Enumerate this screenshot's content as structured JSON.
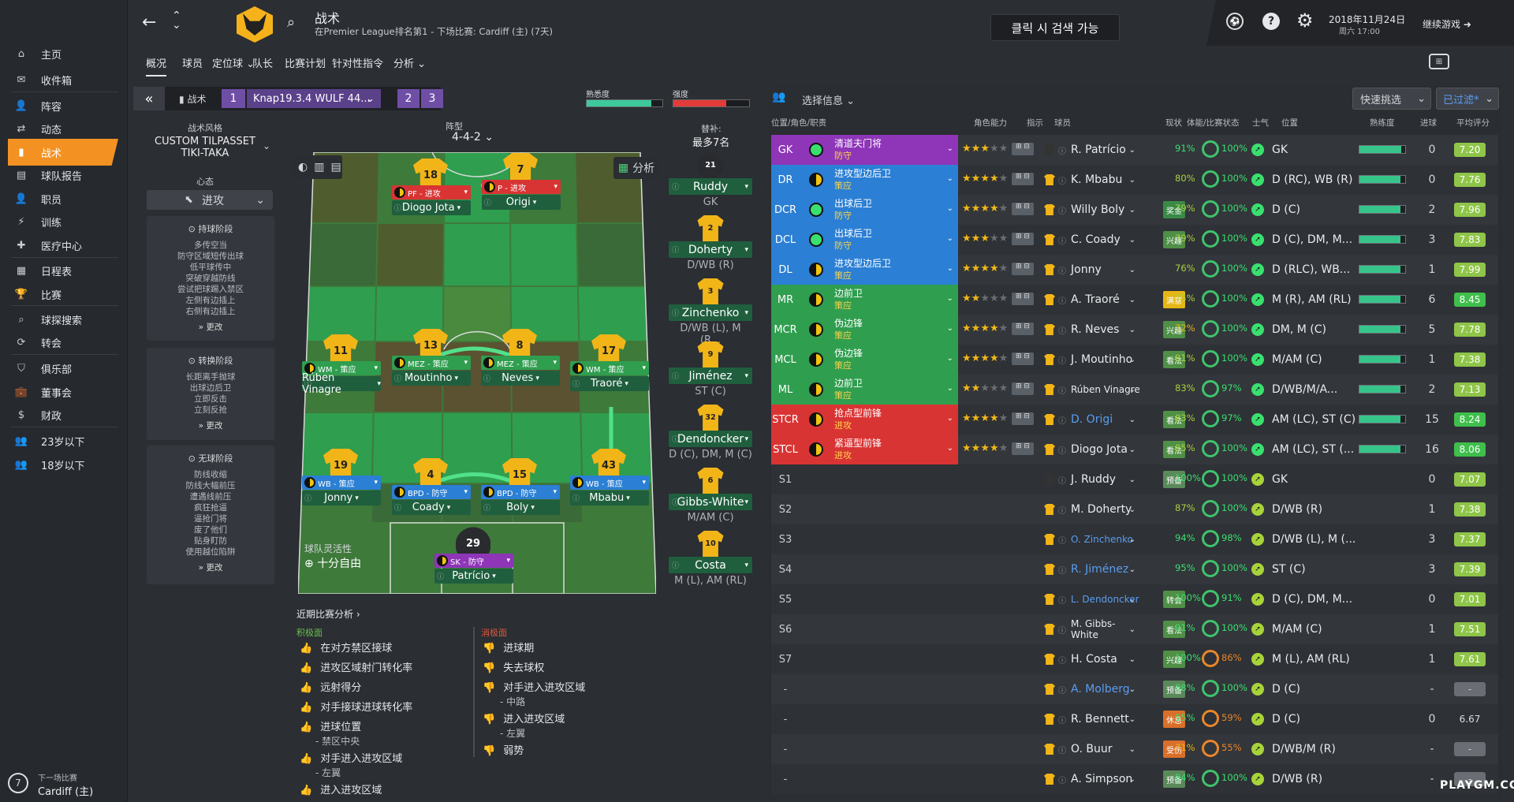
{
  "sidebar": {
    "items": [
      {
        "label": "主页",
        "icon": "home-icon"
      },
      {
        "label": "收件箱",
        "icon": "inbox-icon"
      },
      {
        "label": "阵容",
        "icon": "squad-icon"
      },
      {
        "label": "动态",
        "icon": "dynamics-icon"
      },
      {
        "label": "战术",
        "icon": "tactics-icon"
      },
      {
        "label": "球队报告",
        "icon": "report-icon"
      },
      {
        "label": "职员",
        "icon": "staff-icon"
      },
      {
        "label": "训练",
        "icon": "training-icon"
      },
      {
        "label": "医疗中心",
        "icon": "medical-icon"
      },
      {
        "label": "日程表",
        "icon": "calendar-icon"
      },
      {
        "label": "比赛",
        "icon": "trophy-icon"
      },
      {
        "label": "球探搜索",
        "icon": "search-icon"
      },
      {
        "label": "转会",
        "icon": "transfer-icon"
      },
      {
        "label": "俱乐部",
        "icon": "shield-icon"
      },
      {
        "label": "董事会",
        "icon": "board-icon"
      },
      {
        "label": "财政",
        "icon": "finance-icon"
      },
      {
        "label": "23岁以下",
        "icon": "u23-icon"
      },
      {
        "label": "18岁以下",
        "icon": "u18-icon"
      }
    ],
    "next_match_label": "下一场比赛",
    "next_match_value": "Cardiff (主)",
    "next_match_days": "7"
  },
  "header": {
    "title": "战术",
    "subtitle": "在Premier League排名第1 - 下场比赛: Cardiff (主) (7天)",
    "tooltip": "클릭 시 검색 가능",
    "date": "2018年11月24日",
    "time": "周六 17:00",
    "continue": "继续游戏"
  },
  "subnav": [
    "概况",
    "球员",
    "定位球",
    "队长",
    "比赛计划",
    "针对性指令",
    "分析"
  ],
  "tacticbar": {
    "label": "战术",
    "slot1": "1",
    "tactic_name": "Knap19.3.4 WULF 44...",
    "slot2": "2",
    "slot3": "3"
  },
  "meters": {
    "familiarity_label": "熟悉度",
    "intensity_label": "强度",
    "familiarity": 0.85,
    "intensity": 0.7
  },
  "style": {
    "label": "战术风格",
    "value1": "CUSTOM TILPASSET",
    "value2": "TIKI-TAKA",
    "mentality_label": "心态",
    "mentality": "进攻"
  },
  "phases": [
    {
      "title": "持球阶段",
      "items": [
        "多传空当",
        "防守区域短传出球",
        "低平球传中",
        "突破穿越防线",
        "尝试把球踢入禁区",
        "左侧有边插上",
        "右侧有边插上"
      ],
      "more": "更改"
    },
    {
      "title": "转换阶段",
      "items": [
        "长距离手抛球",
        "出球边后卫",
        "立即反击",
        "立刻反抢"
      ],
      "more": "更改"
    },
    {
      "title": "无球阶段",
      "items": [
        "防线收缩",
        "防线大幅前压",
        "遭遇线前压",
        "疯狂抢逼",
        "逼抢门将",
        "废了他们",
        "贴身盯防",
        "使用越位陷阱"
      ],
      "more": "更改"
    }
  ],
  "formation": {
    "label": "阵型",
    "value": "4-4-2",
    "analysis": "分析",
    "flex_label": "球队灵活性",
    "flex_value": "十分自由"
  },
  "players_on_pitch": [
    {
      "num": "18",
      "role": "PF - 进攻",
      "name": "Diogo Jota",
      "color": "#d93434"
    },
    {
      "num": "7",
      "role": "P - 进攻",
      "name": "Origi",
      "color": "#d93434"
    },
    {
      "num": "11",
      "role": "WM - 策应",
      "name": "Rúben Vinagre",
      "color": "#2f9e4f"
    },
    {
      "num": "13",
      "role": "MEZ - 策应",
      "name": "Moutinho",
      "color": "#2f9e4f"
    },
    {
      "num": "8",
      "role": "MEZ - 策应",
      "name": "Neves",
      "color": "#2f9e4f"
    },
    {
      "num": "17",
      "role": "WM - 策应",
      "name": "Traoré",
      "color": "#2f9e4f"
    },
    {
      "num": "19",
      "role": "WB - 策应",
      "name": "Jonny",
      "color": "#2b7fd4"
    },
    {
      "num": "4",
      "role": "BPD - 防守",
      "name": "Coady",
      "color": "#2b7fd4"
    },
    {
      "num": "15",
      "role": "BPD - 防守",
      "name": "Boly",
      "color": "#2b7fd4"
    },
    {
      "num": "43",
      "role": "WB - 策应",
      "name": "Mbabu",
      "color": "#2b7fd4"
    },
    {
      "num": "29",
      "role": "SK - 防守",
      "name": "Patrício",
      "color": "#8e35b8"
    }
  ],
  "subs": {
    "label": "替补:",
    "max": "最多7名",
    "list": [
      {
        "num": "21",
        "name": "Ruddy",
        "pos": "GK"
      },
      {
        "num": "2",
        "name": "Doherty",
        "pos": "D/WB (R)"
      },
      {
        "num": "3",
        "name": "Zinchenko",
        "pos": "D/WB (L), M (R..."
      },
      {
        "num": "9",
        "name": "Jiménez",
        "pos": "ST (C)"
      },
      {
        "num": "32",
        "name": "Dendoncker",
        "pos": "D (C), DM, M (C)"
      },
      {
        "num": "6",
        "name": "Gibbs-White",
        "pos": "M/AM (C)"
      },
      {
        "num": "10",
        "name": "Costa",
        "pos": "M (L), AM (RL)"
      }
    ]
  },
  "analysis": {
    "title": "近期比赛分析",
    "pos_label": "积极面",
    "neg_label": "消极面",
    "positives": [
      "在对方禁区接球",
      "进攻区域射门转化率",
      "远射得分",
      "对手接球进球转化率",
      "进球位置",
      "- 禁区中央",
      "对手进入进攻区域",
      "- 左翼",
      "进入进攻区域"
    ],
    "negatives": [
      "进球期",
      "失去球权",
      "对手进入进攻区域",
      "- 中路",
      "进入进攻区域",
      "- 左翼",
      "弱势"
    ]
  },
  "table": {
    "select_info": "选择信息",
    "quick_pick": "快速挑选",
    "filtered": "已过滤*",
    "headers": [
      "位置/角色/职责",
      "角色能力",
      "指示",
      "球员",
      "现状",
      "体能/比赛状态",
      "士气",
      "位置",
      "熟练度",
      "进球",
      "平均评分"
    ],
    "rows": [
      {
        "pos": "GK",
        "role": "清道夫门将",
        "duty": "防守",
        "stars": 3,
        "name": "R. Patrício",
        "badge": "",
        "fit": "91%",
        "match": "100%",
        "position": "GK",
        "fam": 0.92,
        "goals": "0",
        "rating": "7.20",
        "bg": "#8e35b8"
      },
      {
        "pos": "DR",
        "role": "进攻型边后卫",
        "duty": "策应",
        "stars": 3.5,
        "name": "K. Mbabu",
        "badge": "",
        "fit": "80%",
        "match": "100%",
        "position": "D (RC), WB (R)",
        "fam": 0.9,
        "goals": "0",
        "rating": "7.76",
        "bg": "#2b7fd4"
      },
      {
        "pos": "DCR",
        "role": "出球后卫",
        "duty": "防守",
        "stars": 3.5,
        "name": "Willy Boly",
        "badge": "奖金",
        "fit": "79%",
        "match": "100%",
        "position": "D (C)",
        "fam": 0.9,
        "goals": "2",
        "rating": "7.96",
        "bg": "#2b7fd4"
      },
      {
        "pos": "DCL",
        "role": "出球后卫",
        "duty": "防守",
        "stars": 3,
        "name": "C. Coady",
        "badge": "兴趣",
        "fit": "79%",
        "match": "100%",
        "position": "D (C), DM, M...",
        "fam": 0.9,
        "goals": "3",
        "rating": "7.83",
        "bg": "#2b7fd4"
      },
      {
        "pos": "DL",
        "role": "进攻型边后卫",
        "duty": "策应",
        "stars": 3.5,
        "name": "Jonny",
        "badge": "",
        "fit": "76%",
        "match": "100%",
        "position": "D (RLC), WB...",
        "fam": 0.9,
        "goals": "1",
        "rating": "7.99",
        "bg": "#2b7fd4"
      },
      {
        "pos": "MR",
        "role": "边前卫",
        "duty": "策应",
        "stars": 2,
        "name": "A. Traoré",
        "badge": "满意",
        "fit": "75%",
        "match": "100%",
        "position": "M (R), AM (RL)",
        "fam": 0.9,
        "goals": "6",
        "rating": "8.45",
        "bg": "#2f9e4f"
      },
      {
        "pos": "MCR",
        "role": "伪边锋",
        "duty": "策应",
        "stars": 3.5,
        "name": "R. Neves",
        "badge": "兴趣",
        "fit": "72%",
        "match": "100%",
        "position": "DM, M (C)",
        "fam": 0.9,
        "goals": "5",
        "rating": "7.78",
        "bg": "#2f9e4f"
      },
      {
        "pos": "MCL",
        "role": "伪边锋",
        "duty": "策应",
        "stars": 3.5,
        "name": "J. Moutinho",
        "badge": "看法",
        "fit": "81%",
        "match": "100%",
        "position": "M/AM (C)",
        "fam": 0.9,
        "goals": "1",
        "rating": "7.38",
        "bg": "#2f9e4f"
      },
      {
        "pos": "ML",
        "role": "边前卫",
        "duty": "策应",
        "stars": 2,
        "name": "Rúben Vinagre",
        "badge": "",
        "fit": "83%",
        "match": "97%",
        "position": "D/WB/M/A...",
        "fam": 0.9,
        "goals": "2",
        "rating": "7.13",
        "bg": "#2f9e4f"
      },
      {
        "pos": "STCR",
        "role": "抢点型前锋",
        "duty": "进攻",
        "stars": 3.5,
        "name": "D. Origi",
        "badge": "看法",
        "fit": "83%",
        "match": "97%",
        "position": "AM (LC), ST (C)",
        "fam": 0.9,
        "goals": "15",
        "rating": "8.24",
        "bg": "#d93434"
      },
      {
        "pos": "STCL",
        "role": "紧逼型前锋",
        "duty": "进攻",
        "stars": 4,
        "name": "Diogo Jota",
        "badge": "看法",
        "fit": "85%",
        "match": "100%",
        "position": "AM (LC), ST (...",
        "fam": 0.9,
        "goals": "16",
        "rating": "8.06",
        "bg": "#d93434"
      },
      {
        "pos": "S1",
        "role": "",
        "duty": "",
        "stars": 0,
        "name": "J. Ruddy",
        "badge": "预备",
        "fit": "100%",
        "match": "100%",
        "position": "GK",
        "fam": 0,
        "goals": "0",
        "rating": "7.07",
        "bg": ""
      },
      {
        "pos": "S2",
        "role": "",
        "duty": "",
        "stars": 0,
        "name": "M. Doherty",
        "badge": "",
        "fit": "87%",
        "match": "100%",
        "position": "D/WB (R)",
        "fam": 0,
        "goals": "1",
        "rating": "7.38",
        "bg": ""
      },
      {
        "pos": "S3",
        "role": "",
        "duty": "",
        "stars": 0,
        "name": "O. Zinchenko",
        "badge": "",
        "fit": "94%",
        "match": "98%",
        "position": "D/WB (L), M (...",
        "fam": 0,
        "goals": "3",
        "rating": "7.37",
        "bg": ""
      },
      {
        "pos": "S4",
        "role": "",
        "duty": "",
        "stars": 0,
        "name": "R. Jiménez",
        "badge": "",
        "fit": "95%",
        "match": "100%",
        "position": "ST (C)",
        "fam": 0,
        "goals": "3",
        "rating": "7.39",
        "bg": ""
      },
      {
        "pos": "S5",
        "role": "",
        "duty": "",
        "stars": 0,
        "name": "L. Dendoncker",
        "badge": "转会",
        "fit": "100%",
        "match": "91%",
        "position": "D (C), DM, M...",
        "fam": 0,
        "goals": "0",
        "rating": "7.01",
        "bg": ""
      },
      {
        "pos": "S6",
        "role": "",
        "duty": "",
        "stars": 0,
        "name": "M. Gibbs-White",
        "badge": "看法",
        "fit": "91%",
        "match": "100%",
        "position": "M/AM (C)",
        "fam": 0,
        "goals": "1",
        "rating": "7.51",
        "bg": ""
      },
      {
        "pos": "S7",
        "role": "",
        "duty": "",
        "stars": 0,
        "name": "H. Costa",
        "badge": "兴趣",
        "fit": "100%",
        "match": "86%",
        "position": "M (L), AM (RL)",
        "fam": 0,
        "goals": "1",
        "rating": "7.61",
        "bg": ""
      },
      {
        "pos": "-",
        "role": "",
        "duty": "",
        "stars": 0,
        "name": "A. Molberg",
        "badge": "预备",
        "fit": "98%",
        "match": "100%",
        "position": "D (C)",
        "fam": 0,
        "goals": "-",
        "rating": "-",
        "bg": ""
      },
      {
        "pos": "-",
        "role": "",
        "duty": "",
        "stars": 0,
        "name": "R. Bennett",
        "badge": "休息",
        "fit": "95%",
        "match": "59%",
        "position": "D (C)",
        "fam": 0,
        "goals": "0",
        "rating": "6.67",
        "bg": ""
      },
      {
        "pos": "-",
        "role": "",
        "duty": "",
        "stars": 0,
        "name": "O. Buur",
        "badge": "受伤",
        "fit": "71%",
        "match": "55%",
        "position": "D/WB/M (R)",
        "fam": 0,
        "goals": "-",
        "rating": "-",
        "bg": ""
      },
      {
        "pos": "-",
        "role": "",
        "duty": "",
        "stars": 0,
        "name": "A. Simpson",
        "badge": "预备",
        "fit": "94%",
        "match": "100%",
        "position": "D/WB (R)",
        "fam": 0,
        "goals": "-",
        "rating": "-",
        "bg": ""
      }
    ]
  },
  "watermark": "PLAYGM.CC"
}
